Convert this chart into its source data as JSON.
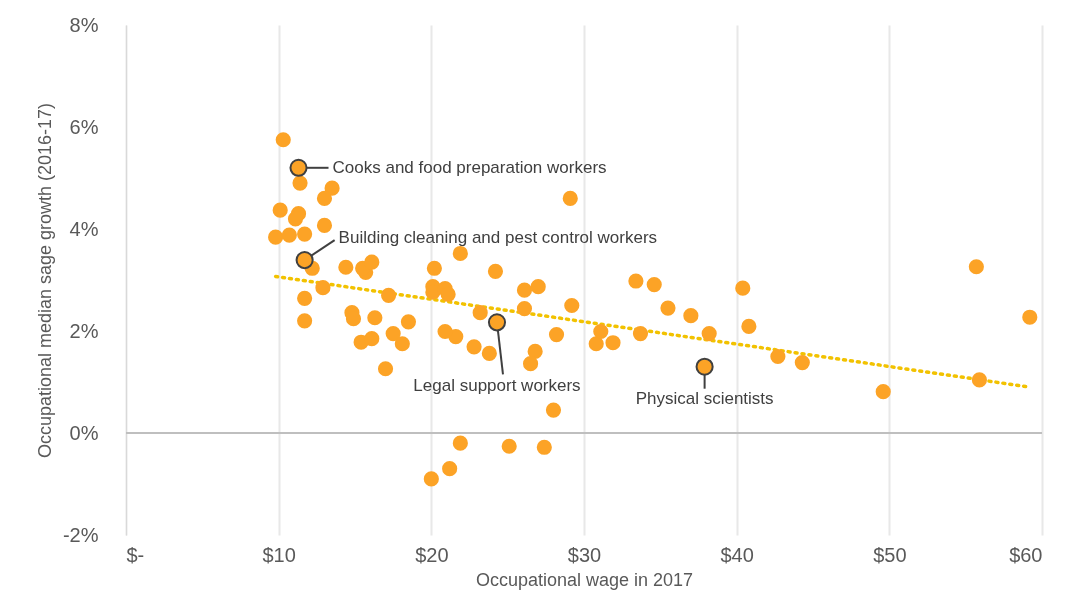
{
  "chart_data": {
    "type": "scatter",
    "xlabel": "Occupational wage in 2017",
    "ylabel": "Occupational median sage growth (2016-17)",
    "xlim": [
      0,
      60
    ],
    "xticks": [
      {
        "value": 0,
        "label": "$-"
      },
      {
        "value": 10,
        "label": "$10"
      },
      {
        "value": 20,
        "label": "$20"
      },
      {
        "value": 30,
        "label": "$30"
      },
      {
        "value": 40,
        "label": "$40"
      },
      {
        "value": 50,
        "label": "$50"
      },
      {
        "value": 60,
        "label": "$60"
      }
    ],
    "ylim": [
      -2,
      8
    ],
    "yticks": [
      {
        "value": -2,
        "label": "-2%"
      },
      {
        "value": 0,
        "label": "0%"
      },
      {
        "value": 2,
        "label": "2%"
      },
      {
        "value": 4,
        "label": "4%"
      },
      {
        "value": 6,
        "label": "6%"
      },
      {
        "value": 8,
        "label": "8%"
      }
    ],
    "grid": "x",
    "ref_lines": [
      {
        "axis": "y",
        "value": 0,
        "color": "#bfbfbf"
      }
    ],
    "series": [
      {
        "color": "#fca326",
        "marker": "circle",
        "x": [
          10.3,
          11.3,
          11.4,
          13.5,
          13.0,
          10.1,
          11.3,
          11.1,
          13.0,
          9.8,
          10.7,
          11.7,
          11.7,
          12.2,
          14.4,
          15.7,
          15.5,
          16.1,
          12.9,
          11.7,
          11.7,
          17.2,
          14.8,
          14.9,
          16.3,
          15.4,
          16.1,
          17.5,
          18.1,
          18.5,
          17.0,
          20.2,
          21.9,
          20.1,
          20.1,
          20.9,
          21.1,
          24.2,
          29.1,
          23.2,
          23.8,
          22.8,
          21.6,
          20.9,
          24.3,
          26.1,
          27.0,
          26.1,
          26.8,
          26.5,
          28.2,
          28.0,
          21.9,
          25.1,
          27.4,
          21.2,
          20.0,
          29.2,
          30.8,
          31.1,
          31.9,
          33.4,
          34.6,
          35.5,
          37.0,
          38.2,
          33.7,
          40.4,
          40.8,
          42.7,
          44.3,
          49.6,
          55.7,
          55.9,
          59.2,
          37.9
        ],
        "values": [
          5.75,
          5.2,
          4.9,
          4.8,
          4.6,
          4.37,
          4.3,
          4.2,
          4.07,
          3.84,
          3.88,
          3.9,
          3.39,
          3.23,
          3.25,
          3.15,
          3.23,
          3.35,
          2.85,
          2.64,
          2.2,
          2.7,
          2.36,
          2.24,
          2.26,
          1.78,
          1.85,
          1.95,
          1.75,
          2.18,
          1.26,
          3.23,
          3.52,
          2.87,
          2.76,
          2.83,
          2.72,
          3.17,
          4.6,
          2.36,
          1.56,
          1.69,
          1.89,
          1.99,
          2.17,
          2.8,
          2.87,
          2.44,
          1.6,
          1.36,
          1.93,
          0.45,
          -0.2,
          -0.26,
          -0.28,
          -0.7,
          -0.9,
          2.5,
          1.75,
          1.99,
          1.77,
          2.98,
          2.91,
          2.45,
          2.3,
          1.95,
          1.95,
          2.84,
          2.09,
          1.5,
          1.38,
          0.81,
          3.26,
          1.04,
          2.27,
          1.3
        ]
      },
      {
        "type": "line",
        "color": "#f2c200",
        "line_style": "dotted",
        "x": [
          9.8,
          59.2
        ],
        "values": [
          3.07,
          0.9
        ]
      }
    ],
    "annotations": [
      {
        "text": "Cooks and food preparation workers",
        "x": 11.3,
        "y": 5.2
      },
      {
        "text": "Building cleaning and pest control workers",
        "x": 11.7,
        "y": 3.39
      },
      {
        "text": "Legal support workers",
        "x": 24.3,
        "y": 2.17
      },
      {
        "text": "Physical scientists",
        "x": 37.9,
        "y": 1.3
      }
    ]
  }
}
